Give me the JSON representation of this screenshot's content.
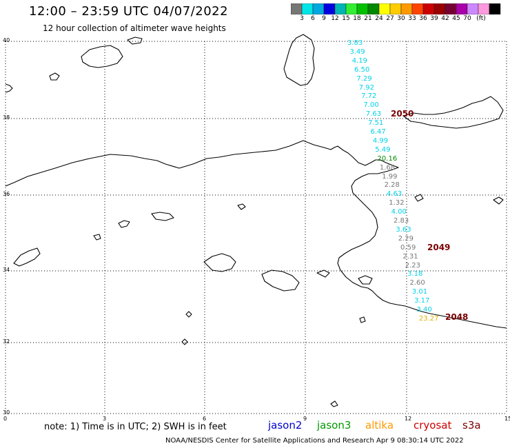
{
  "header": {
    "title": "12:00 – 23:59 UTC 04/07/2022",
    "subtitle": "12 hour collection of altimeter wave heights"
  },
  "colorbar": {
    "colors": [
      "#777777",
      "#00e5e5",
      "#00a8e0",
      "#0000e0",
      "#00b4b4",
      "#33ee33",
      "#00c000",
      "#008800",
      "#ffff00",
      "#ffcc00",
      "#ff9900",
      "#ff4400",
      "#cc0000",
      "#990000",
      "#770033",
      "#aa00aa",
      "#cc88ff",
      "#ff99dd",
      "#000000"
    ],
    "labels": [
      "3",
      "6",
      "9",
      "12",
      "15",
      "18",
      "21",
      "24",
      "27",
      "30",
      "33",
      "36",
      "39",
      "42",
      "45",
      "70",
      "(ft)"
    ]
  },
  "axes": {
    "lat_labels": [
      "40",
      "38",
      "36",
      "34",
      "32",
      "30"
    ],
    "lon_labels": [
      "0",
      "3",
      "6",
      "9",
      "12",
      "15"
    ]
  },
  "tracks": {
    "colors": {
      "cyan": "#00d2e6",
      "gray": "#777777",
      "green": "#008800",
      "gold": "#e0b000"
    },
    "points": [
      {
        "v": "3.83",
        "c": "cyan"
      },
      {
        "v": "3.49",
        "c": "cyan"
      },
      {
        "v": "4.19",
        "c": "cyan"
      },
      {
        "v": "6.50",
        "c": "cyan"
      },
      {
        "v": "7.29",
        "c": "cyan"
      },
      {
        "v": "7.92",
        "c": "cyan"
      },
      {
        "v": "7.72",
        "c": "cyan"
      },
      {
        "v": "7.00",
        "c": "cyan"
      },
      {
        "v": "7.63",
        "c": "cyan"
      },
      {
        "v": "7.51",
        "c": "cyan"
      },
      {
        "v": "6.47",
        "c": "cyan"
      },
      {
        "v": "4.99",
        "c": "cyan"
      },
      {
        "v": "5.49",
        "c": "cyan"
      },
      {
        "v": "20.16",
        "c": "green"
      },
      {
        "v": "1.68",
        "c": "gray"
      },
      {
        "v": "1.99",
        "c": "gray"
      },
      {
        "v": "2.28",
        "c": "gray"
      },
      {
        "v": "4.63",
        "c": "cyan"
      },
      {
        "v": "1.32",
        "c": "gray"
      },
      {
        "v": "4.00",
        "c": "cyan"
      },
      {
        "v": "2.83",
        "c": "gray"
      },
      {
        "v": "3.63",
        "c": "cyan"
      },
      {
        "v": "2.29",
        "c": "gray"
      },
      {
        "v": "0.59",
        "c": "gray"
      },
      {
        "v": "2.31",
        "c": "gray"
      },
      {
        "v": "2.23",
        "c": "gray"
      },
      {
        "v": "3.18",
        "c": "cyan"
      },
      {
        "v": "2.60",
        "c": "gray"
      },
      {
        "v": "3.01",
        "c": "cyan"
      },
      {
        "v": "3.17",
        "c": "cyan"
      },
      {
        "v": "3.40",
        "c": "cyan"
      },
      {
        "v": "23.27",
        "c": "gold"
      }
    ],
    "passes": [
      "2050",
      "2049",
      "2048"
    ]
  },
  "footer": {
    "note": "note:  1) Time is in UTC; 2) SWH is in feet",
    "legend": [
      {
        "name": "jason2",
        "color": "#0000cc"
      },
      {
        "name": "jason3",
        "color": "#009900"
      },
      {
        "name": "altika",
        "color": "#ff9900"
      },
      {
        "name": "cryosat",
        "color": "#cc0000"
      },
      {
        "name": "s3a",
        "color": "#7a0000"
      }
    ],
    "credit": "NOAA/NESDIS Center for Satellite Applications and Research    Apr  9 08:30:14 UTC 2022"
  }
}
